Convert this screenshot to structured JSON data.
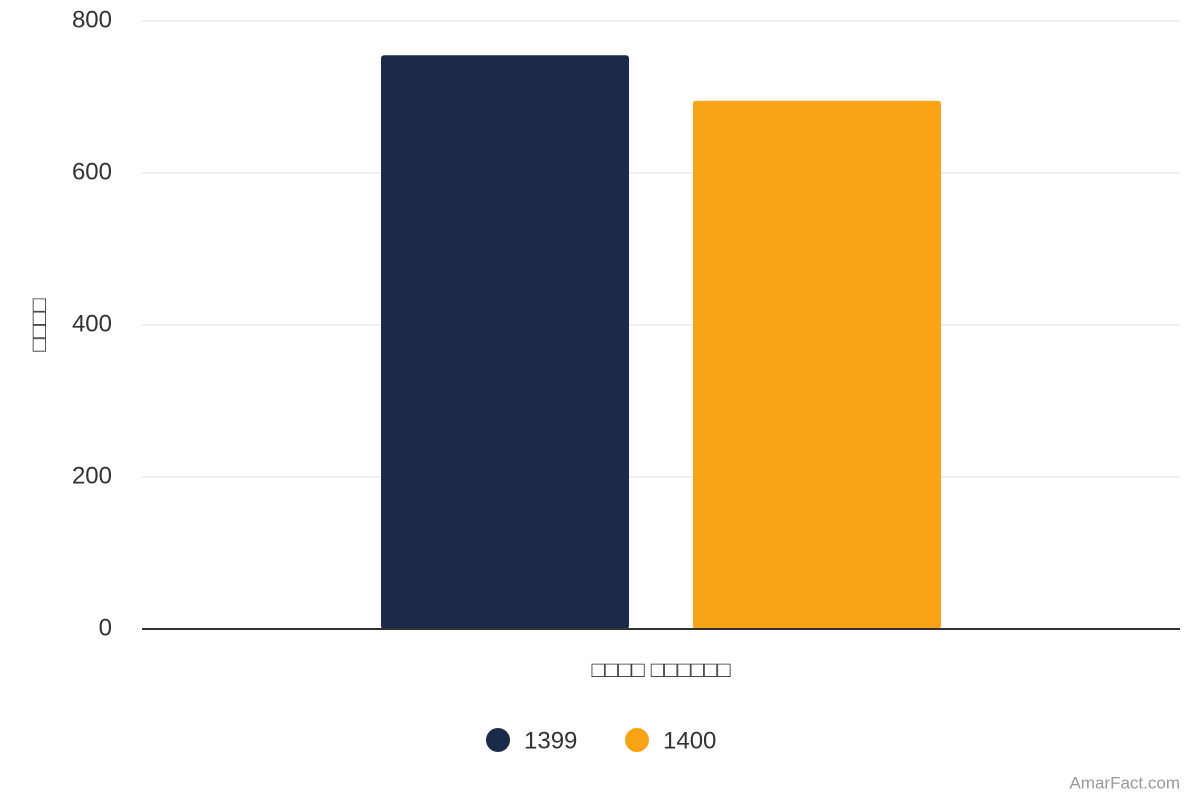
{
  "chart_data": {
    "type": "bar",
    "y_label": "□□□□",
    "categories": [
      "□□□□ □□□□□□"
    ],
    "series": [
      {
        "name": "1399",
        "color": "#1b2a4b",
        "values": [
          755
        ]
      },
      {
        "name": "1400",
        "color": "#f9a416",
        "values": [
          695
        ]
      }
    ],
    "ylim": [
      0,
      800
    ],
    "yticks": [
      0,
      200,
      400,
      600,
      800
    ],
    "grid": true,
    "legend": "bottom",
    "credit": "AmarFact.com"
  }
}
